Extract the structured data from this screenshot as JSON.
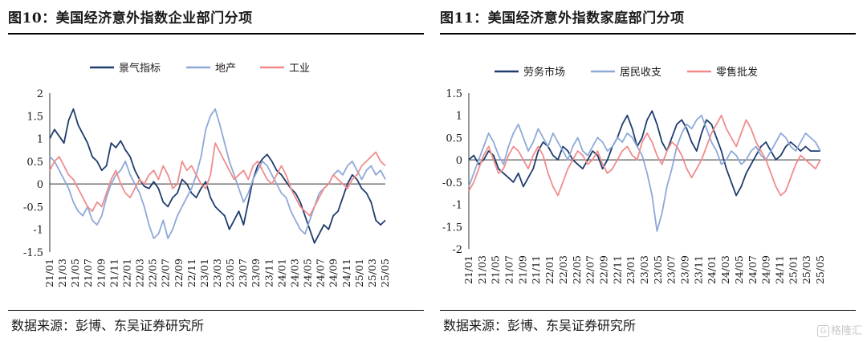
{
  "panels": [
    {
      "title": "图10：美国经济意外指数企业部门分项",
      "source": "数据来源：彭博、东吴证券研究所",
      "chart_data": {
        "type": "line",
        "yticks": [
          2,
          1.5,
          1,
          0.5,
          0,
          -0.5,
          -1,
          -1.5
        ],
        "ylim": [
          -1.5,
          2
        ],
        "xticks": [
          "21/01",
          "21/03",
          "21/05",
          "21/07",
          "21/09",
          "21/11",
          "22/01",
          "22/03",
          "22/05",
          "22/07",
          "22/09",
          "22/11",
          "23/01",
          "23/03",
          "23/05",
          "23/07",
          "23/09",
          "23/11",
          "24/01",
          "24/03",
          "24/05",
          "24/07",
          "24/09",
          "24/11",
          "25/01",
          "25/03",
          "25/05"
        ],
        "legend_position": "top",
        "grid": false,
        "series": [
          {
            "name": "景气指标",
            "color": "#1f3d6e",
            "values": [
              1.0,
              1.2,
              1.05,
              0.9,
              1.4,
              1.65,
              1.3,
              1.1,
              0.9,
              0.6,
              0.5,
              0.3,
              0.4,
              0.9,
              0.8,
              0.95,
              0.75,
              0.6,
              0.3,
              0.1,
              -0.05,
              -0.1,
              0.05,
              -0.1,
              -0.4,
              -0.5,
              -0.3,
              -0.2,
              0.1,
              0.0,
              -0.2,
              -0.3,
              -0.1,
              0.05,
              -0.3,
              -0.5,
              -0.6,
              -0.7,
              -1.0,
              -0.8,
              -0.6,
              -0.9,
              -0.4,
              0.1,
              0.4,
              0.55,
              0.65,
              0.5,
              0.3,
              0.2,
              0.05,
              -0.1,
              -0.2,
              -0.4,
              -0.7,
              -1.0,
              -1.3,
              -1.1,
              -0.9,
              -1.0,
              -0.7,
              -0.6,
              -0.3,
              0.0,
              0.2,
              0.1,
              -0.1,
              -0.2,
              -0.4,
              -0.8,
              -0.9,
              -0.8
            ]
          },
          {
            "name": "地产",
            "color": "#8ea9d8",
            "values": [
              0.6,
              0.5,
              0.3,
              0.1,
              -0.1,
              -0.4,
              -0.6,
              -0.7,
              -0.5,
              -0.8,
              -0.9,
              -0.7,
              -0.3,
              0.0,
              0.2,
              0.3,
              0.5,
              0.2,
              0.0,
              -0.2,
              -0.5,
              -0.9,
              -1.2,
              -1.1,
              -0.8,
              -1.2,
              -1.0,
              -0.7,
              -0.5,
              -0.3,
              -0.1,
              0.2,
              0.6,
              1.2,
              1.5,
              1.65,
              1.3,
              0.9,
              0.5,
              0.2,
              -0.1,
              -0.4,
              -0.2,
              0.1,
              0.3,
              0.5,
              0.4,
              0.2,
              0.0,
              -0.2,
              -0.3,
              -0.6,
              -0.8,
              -1.0,
              -1.1,
              -0.8,
              -0.5,
              -0.2,
              -0.1,
              0.0,
              0.2,
              0.3,
              0.2,
              0.4,
              0.5,
              0.3,
              0.1,
              0.3,
              0.4,
              0.2,
              0.3,
              0.1
            ]
          },
          {
            "name": "工业",
            "color": "#f08c8c",
            "values": [
              0.3,
              0.5,
              0.6,
              0.4,
              0.2,
              0.1,
              -0.1,
              -0.3,
              -0.5,
              -0.6,
              -0.4,
              -0.5,
              -0.2,
              0.1,
              0.3,
              0.0,
              -0.2,
              -0.3,
              -0.1,
              0.1,
              0.0,
              0.2,
              0.3,
              0.1,
              0.4,
              0.2,
              -0.1,
              0.0,
              0.5,
              0.3,
              0.4,
              0.2,
              0.0,
              -0.1,
              0.2,
              0.9,
              0.7,
              0.5,
              0.3,
              0.1,
              0.2,
              0.3,
              0.1,
              0.4,
              0.5,
              0.3,
              0.1,
              0.0,
              0.2,
              0.4,
              0.2,
              -0.1,
              -0.3,
              -0.5,
              -0.6,
              -0.7,
              -0.5,
              -0.3,
              -0.1,
              0.0,
              0.2,
              0.1,
              0.0,
              -0.1,
              0.1,
              0.2,
              0.4,
              0.5,
              0.6,
              0.7,
              0.5,
              0.4
            ]
          }
        ]
      }
    },
    {
      "title": "图11：美国经济意外指数家庭部门分项",
      "source": "数据来源：彭博、东吴证券研究所",
      "chart_data": {
        "type": "line",
        "yticks": [
          1.5,
          1,
          0.5,
          0,
          -0.5,
          -1,
          -1.5,
          -2
        ],
        "ylim": [
          -2,
          1.5
        ],
        "xticks": [
          "21/01",
          "21/03",
          "21/05",
          "21/07",
          "21/09",
          "21/11",
          "22/01",
          "22/03",
          "22/05",
          "22/07",
          "22/09",
          "22/11",
          "23/01",
          "23/03",
          "23/05",
          "23/07",
          "23/09",
          "23/11",
          "24/01",
          "24/03",
          "24/05",
          "24/07",
          "24/09",
          "24/11",
          "25/01",
          "25/03",
          "25/05"
        ],
        "legend_position": "top",
        "grid": false,
        "series": [
          {
            "name": "劳务市场",
            "color": "#1f3d6e",
            "values": [
              0.0,
              0.1,
              -0.1,
              0.0,
              0.2,
              0.1,
              -0.2,
              -0.3,
              -0.4,
              -0.5,
              -0.3,
              -0.6,
              -0.4,
              -0.2,
              0.2,
              0.4,
              0.3,
              0.1,
              0.0,
              0.3,
              0.2,
              0.0,
              -0.1,
              -0.2,
              0.0,
              0.2,
              0.1,
              -0.2,
              0.0,
              0.3,
              0.5,
              0.8,
              1.0,
              0.7,
              0.3,
              0.5,
              0.9,
              1.1,
              0.8,
              0.4,
              0.2,
              0.5,
              0.8,
              0.9,
              0.7,
              0.4,
              0.2,
              0.6,
              0.9,
              0.8,
              0.5,
              0.2,
              -0.2,
              -0.5,
              -0.8,
              -0.6,
              -0.3,
              -0.1,
              0.1,
              0.3,
              0.4,
              0.2,
              0.0,
              0.1,
              0.3,
              0.4,
              0.3,
              0.2,
              0.3,
              0.2,
              0.2,
              0.2
            ]
          },
          {
            "name": "居民收支",
            "color": "#8ea9d8",
            "values": [
              -0.6,
              -0.3,
              0.0,
              0.3,
              0.6,
              0.4,
              0.1,
              -0.1,
              0.3,
              0.6,
              0.8,
              0.5,
              0.2,
              0.4,
              0.7,
              0.5,
              0.3,
              0.6,
              0.4,
              0.2,
              0.0,
              0.3,
              0.5,
              0.2,
              0.1,
              0.3,
              0.5,
              0.4,
              0.2,
              0.3,
              0.5,
              0.4,
              0.6,
              0.5,
              0.3,
              0.1,
              -0.3,
              -0.8,
              -1.6,
              -1.2,
              -0.6,
              -0.2,
              0.3,
              0.6,
              0.8,
              0.7,
              0.9,
              1.0,
              0.7,
              0.4,
              0.2,
              -0.1,
              0.0,
              0.2,
              0.1,
              -0.1,
              0.0,
              0.2,
              0.3,
              0.1,
              0.0,
              0.2,
              0.4,
              0.6,
              0.5,
              0.3,
              0.2,
              0.4,
              0.6,
              0.5,
              0.4,
              0.2
            ]
          },
          {
            "name": "零售批发",
            "color": "#f08c8c",
            "values": [
              -0.7,
              -0.5,
              -0.2,
              0.1,
              0.3,
              0.0,
              -0.3,
              -0.2,
              0.1,
              0.3,
              0.2,
              0.0,
              -0.2,
              0.1,
              0.3,
              0.1,
              -0.3,
              -0.6,
              -0.8,
              -0.5,
              -0.2,
              0.0,
              0.2,
              0.1,
              -0.1,
              0.0,
              0.2,
              -0.1,
              -0.3,
              -0.2,
              0.0,
              0.2,
              0.3,
              0.1,
              0.0,
              0.4,
              0.6,
              0.4,
              0.1,
              -0.1,
              0.2,
              0.4,
              0.3,
              0.1,
              -0.2,
              -0.4,
              -0.2,
              0.0,
              0.3,
              0.6,
              0.8,
              1.0,
              0.7,
              0.5,
              0.3,
              0.6,
              0.9,
              0.7,
              0.4,
              0.2,
              0.0,
              -0.3,
              -0.6,
              -0.8,
              -0.7,
              -0.4,
              -0.1,
              0.1,
              0.0,
              -0.1,
              -0.2,
              0.0
            ]
          }
        ]
      }
    }
  ],
  "watermark": {
    "icon": "brand-logo-icon",
    "text": "格隆汇"
  }
}
